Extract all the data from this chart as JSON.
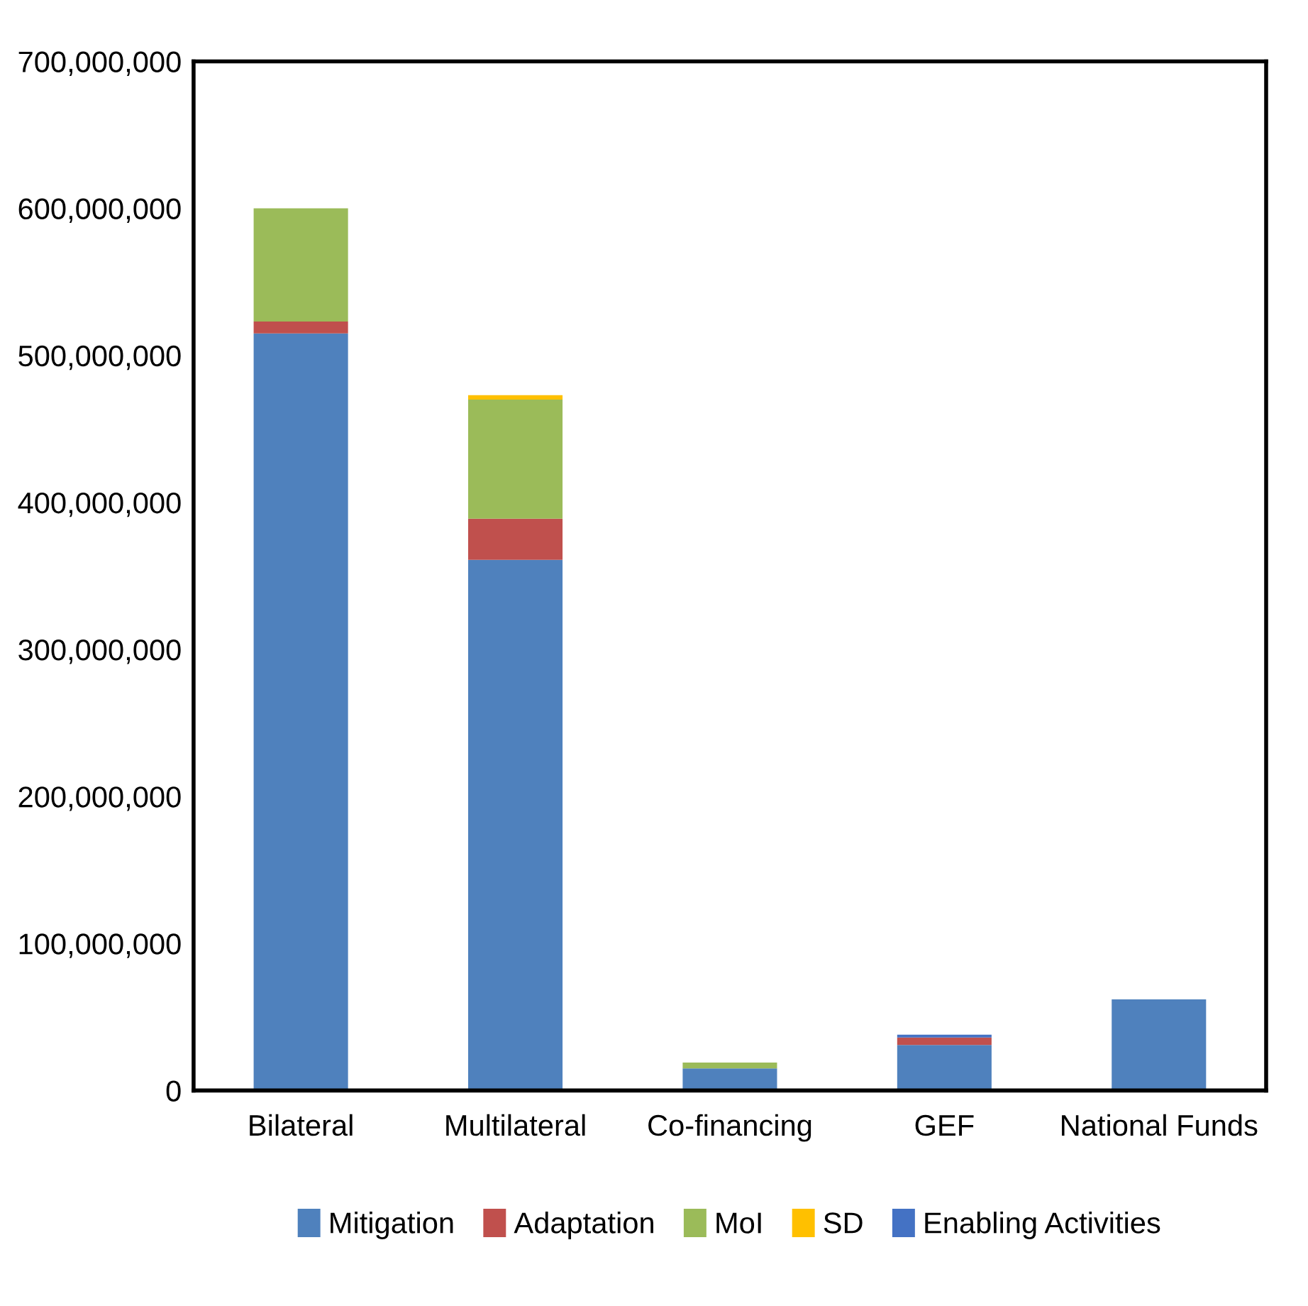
{
  "chart_data": {
    "type": "bar",
    "stacked": true,
    "categories": [
      "Bilateral",
      "Multilateral",
      "Co-financing",
      "GEF",
      "National Funds"
    ],
    "series": [
      {
        "name": "Mitigation",
        "color": "#4f81bd",
        "values": [
          515000000,
          361000000,
          15000000,
          31000000,
          62000000
        ]
      },
      {
        "name": "Adaptation",
        "color": "#c0504d",
        "values": [
          8000000,
          28000000,
          0,
          5000000,
          0
        ]
      },
      {
        "name": "MoI",
        "color": "#9bbb59",
        "values": [
          77000000,
          81000000,
          4000000,
          0,
          0
        ]
      },
      {
        "name": "SD",
        "color": "#ffc000",
        "values": [
          0,
          3000000,
          0,
          0,
          0
        ]
      },
      {
        "name": "Enabling Activities",
        "color": "#4472c4",
        "values": [
          0,
          0,
          0,
          2000000,
          0
        ]
      }
    ],
    "ylim": [
      0,
      700000000
    ],
    "yticks": [
      {
        "value": 0,
        "label": "0"
      },
      {
        "value": 100000000,
        "label": "100,000,000"
      },
      {
        "value": 200000000,
        "label": "200,000,000"
      },
      {
        "value": 300000000,
        "label": "300,000,000"
      },
      {
        "value": 400000000,
        "label": "400,000,000"
      },
      {
        "value": 500000000,
        "label": "500,000,000"
      },
      {
        "value": 600000000,
        "label": "600,000,000"
      },
      {
        "value": 700000000,
        "label": "700,000,000"
      }
    ],
    "grid": false,
    "legend": "bottom"
  }
}
